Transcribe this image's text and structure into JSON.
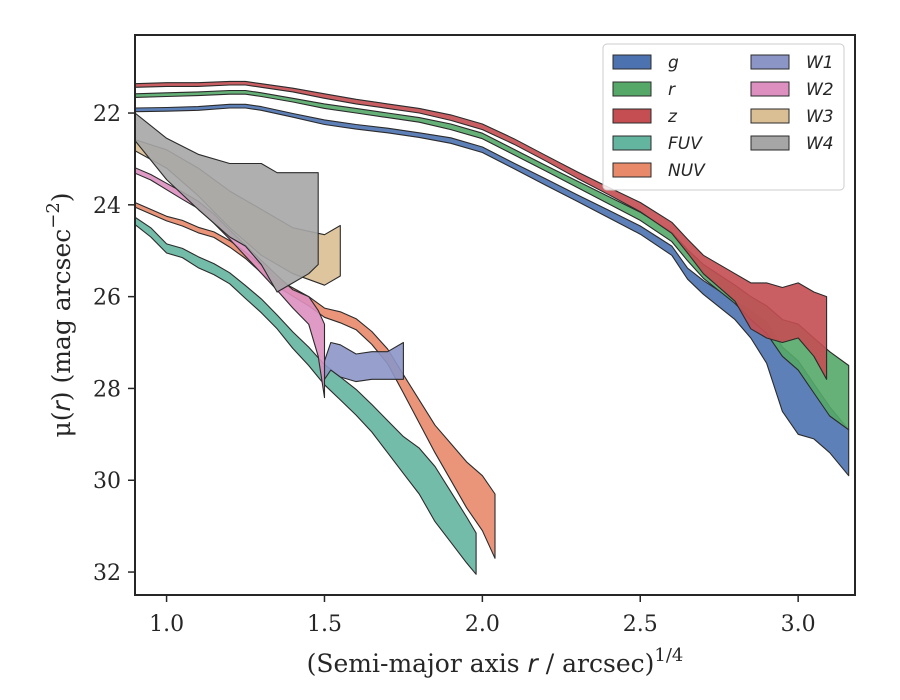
{
  "chart_data": {
    "type": "area",
    "xlabel": "(Semi-major axis r / arcsec)^{1/4}",
    "ylabel": "μ(r) (mag arcsec^{−2})",
    "xlim": [
      0.9,
      3.18
    ],
    "ylim": [
      32.5,
      20.3
    ],
    "y_inverted": true,
    "xticks": [
      1.0,
      1.5,
      2.0,
      2.5,
      3.0
    ],
    "xtick_labels": [
      "1.0",
      "1.5",
      "2.0",
      "2.5",
      "3.0"
    ],
    "yticks": [
      22,
      24,
      26,
      28,
      30,
      32
    ],
    "ytick_labels": [
      "22",
      "24",
      "26",
      "28",
      "30",
      "32"
    ],
    "grid": false,
    "legend_position": "top-right",
    "legend_columns": 2,
    "series": [
      {
        "name": "g",
        "color": "#4c72b0",
        "x": [
          0.9,
          1.0,
          1.1,
          1.2,
          1.25,
          1.3,
          1.4,
          1.5,
          1.6,
          1.7,
          1.8,
          1.9,
          2.0,
          2.1,
          2.2,
          2.3,
          2.4,
          2.5,
          2.6,
          2.65,
          2.7,
          2.8,
          2.85,
          2.9,
          2.95,
          3.0,
          3.05,
          3.1,
          3.16
        ],
        "y": [
          21.93,
          21.92,
          21.9,
          21.85,
          21.85,
          21.9,
          22.05,
          22.2,
          22.3,
          22.38,
          22.48,
          22.6,
          22.8,
          23.15,
          23.5,
          23.85,
          24.2,
          24.55,
          25.0,
          25.5,
          25.8,
          26.3,
          26.6,
          27.0,
          27.8,
          28.2,
          28.5,
          28.9,
          29.4
        ],
        "yerr": [
          0.04,
          0.04,
          0.04,
          0.04,
          0.04,
          0.04,
          0.04,
          0.05,
          0.05,
          0.05,
          0.05,
          0.06,
          0.06,
          0.06,
          0.07,
          0.07,
          0.08,
          0.09,
          0.1,
          0.12,
          0.15,
          0.2,
          0.3,
          0.45,
          0.7,
          0.8,
          0.6,
          0.5,
          0.5
        ]
      },
      {
        "name": "r",
        "color": "#55a868",
        "x": [
          0.9,
          1.0,
          1.1,
          1.2,
          1.25,
          1.3,
          1.4,
          1.5,
          1.6,
          1.7,
          1.8,
          1.9,
          2.0,
          2.1,
          2.2,
          2.3,
          2.4,
          2.5,
          2.6,
          2.65,
          2.7,
          2.8,
          2.85,
          2.9,
          2.95,
          3.0,
          3.05,
          3.1,
          3.16
        ],
        "y": [
          21.62,
          21.6,
          21.58,
          21.55,
          21.55,
          21.6,
          21.72,
          21.85,
          21.95,
          22.05,
          22.15,
          22.3,
          22.5,
          22.85,
          23.2,
          23.55,
          23.9,
          24.25,
          24.7,
          25.1,
          25.45,
          25.95,
          26.25,
          26.5,
          26.9,
          27.1,
          27.5,
          27.9,
          28.2
        ],
        "yerr": [
          0.04,
          0.04,
          0.04,
          0.04,
          0.04,
          0.04,
          0.04,
          0.05,
          0.05,
          0.05,
          0.05,
          0.06,
          0.06,
          0.06,
          0.06,
          0.07,
          0.08,
          0.09,
          0.1,
          0.12,
          0.15,
          0.2,
          0.25,
          0.3,
          0.4,
          0.5,
          0.6,
          0.7,
          0.7
        ]
      },
      {
        "name": "z",
        "color": "#c44e52",
        "x": [
          0.9,
          1.0,
          1.1,
          1.2,
          1.25,
          1.3,
          1.4,
          1.5,
          1.6,
          1.7,
          1.8,
          1.9,
          2.0,
          2.1,
          2.2,
          2.3,
          2.4,
          2.5,
          2.6,
          2.65,
          2.7,
          2.8,
          2.85,
          2.9,
          2.95,
          3.0,
          3.05,
          3.09
        ],
        "y": [
          21.4,
          21.38,
          21.38,
          21.35,
          21.35,
          21.4,
          21.5,
          21.63,
          21.75,
          21.85,
          21.95,
          22.1,
          22.3,
          22.62,
          22.98,
          23.35,
          23.7,
          24.05,
          24.5,
          24.9,
          25.3,
          25.8,
          26.2,
          26.3,
          26.4,
          26.3,
          26.6,
          26.9
        ],
        "yerr": [
          0.04,
          0.04,
          0.04,
          0.04,
          0.04,
          0.04,
          0.04,
          0.05,
          0.05,
          0.05,
          0.05,
          0.06,
          0.06,
          0.06,
          0.06,
          0.07,
          0.08,
          0.1,
          0.12,
          0.15,
          0.2,
          0.3,
          0.5,
          0.6,
          0.6,
          0.6,
          0.7,
          0.9
        ]
      },
      {
        "name": "FUV",
        "color": "#64b5a0",
        "x": [
          0.9,
          0.95,
          1.0,
          1.05,
          1.1,
          1.15,
          1.2,
          1.25,
          1.3,
          1.35,
          1.4,
          1.45,
          1.5,
          1.55,
          1.6,
          1.65,
          1.7,
          1.75,
          1.8,
          1.85,
          1.9,
          1.95,
          1.98
        ],
        "y": [
          24.35,
          24.6,
          24.95,
          25.05,
          25.25,
          25.4,
          25.6,
          25.9,
          26.2,
          26.55,
          26.95,
          27.3,
          27.7,
          28.0,
          28.3,
          28.65,
          29.05,
          29.45,
          29.8,
          30.3,
          30.8,
          31.3,
          31.6
        ],
        "yerr": [
          0.08,
          0.1,
          0.1,
          0.1,
          0.12,
          0.12,
          0.12,
          0.14,
          0.15,
          0.15,
          0.18,
          0.2,
          0.22,
          0.25,
          0.28,
          0.3,
          0.35,
          0.4,
          0.5,
          0.6,
          0.55,
          0.5,
          0.45
        ]
      },
      {
        "name": "NUV",
        "color": "#e8896a",
        "x": [
          0.9,
          0.95,
          1.0,
          1.05,
          1.1,
          1.15,
          1.2,
          1.25,
          1.3,
          1.35,
          1.4,
          1.45,
          1.5,
          1.55,
          1.6,
          1.65,
          1.7,
          1.75,
          1.8,
          1.85,
          1.9,
          1.95,
          2.0,
          2.04
        ],
        "y": [
          24.0,
          24.15,
          24.3,
          24.4,
          24.55,
          24.65,
          24.85,
          25.1,
          25.4,
          25.7,
          25.9,
          26.1,
          26.35,
          26.45,
          26.6,
          26.9,
          27.3,
          27.9,
          28.5,
          29.1,
          29.6,
          30.1,
          30.5,
          31.0
        ],
        "yerr": [
          0.05,
          0.05,
          0.05,
          0.06,
          0.06,
          0.06,
          0.07,
          0.07,
          0.08,
          0.08,
          0.09,
          0.1,
          0.1,
          0.12,
          0.12,
          0.14,
          0.16,
          0.2,
          0.25,
          0.3,
          0.4,
          0.5,
          0.6,
          0.7
        ]
      },
      {
        "name": "W1",
        "color": "#8c96c6",
        "x": [
          1.5,
          1.52,
          1.55,
          1.6,
          1.65,
          1.7,
          1.75
        ],
        "y": [
          27.6,
          27.3,
          27.4,
          27.55,
          27.5,
          27.5,
          27.4
        ],
        "yerr": [
          0.2,
          0.3,
          0.35,
          0.3,
          0.3,
          0.3,
          0.4
        ]
      },
      {
        "name": "W2",
        "color": "#dd8fc0",
        "x": [
          0.9,
          0.95,
          1.0,
          1.05,
          1.1,
          1.15,
          1.2,
          1.25,
          1.3,
          1.35,
          1.4,
          1.45,
          1.48,
          1.5
        ],
        "y": [
          23.25,
          23.4,
          23.6,
          23.8,
          24.0,
          24.3,
          24.65,
          25.0,
          25.35,
          25.7,
          26.05,
          26.3,
          26.8,
          27.4
        ],
        "yerr": [
          0.06,
          0.06,
          0.07,
          0.08,
          0.08,
          0.1,
          0.1,
          0.12,
          0.14,
          0.16,
          0.2,
          0.3,
          0.5,
          0.8
        ]
      },
      {
        "name": "W3",
        "color": "#dbbf94",
        "x": [
          0.9,
          1.0,
          1.1,
          1.2,
          1.3,
          1.4,
          1.5,
          1.55
        ],
        "y": [
          22.7,
          23.0,
          23.5,
          24.1,
          24.6,
          25.0,
          25.2,
          25.0
        ],
        "yerr": [
          0.12,
          0.2,
          0.3,
          0.4,
          0.5,
          0.5,
          0.55,
          0.55
        ]
      },
      {
        "name": "W4",
        "color": "#a6a6a6",
        "x": [
          0.9,
          1.0,
          1.1,
          1.2,
          1.25,
          1.3,
          1.35,
          1.4,
          1.45,
          1.48
        ],
        "y": [
          22.3,
          23.0,
          23.5,
          23.9,
          24.0,
          24.2,
          24.6,
          24.5,
          24.4,
          24.3
        ],
        "yerr": [
          0.3,
          0.45,
          0.6,
          0.8,
          0.9,
          1.1,
          1.3,
          1.2,
          1.1,
          1.0
        ]
      }
    ]
  }
}
